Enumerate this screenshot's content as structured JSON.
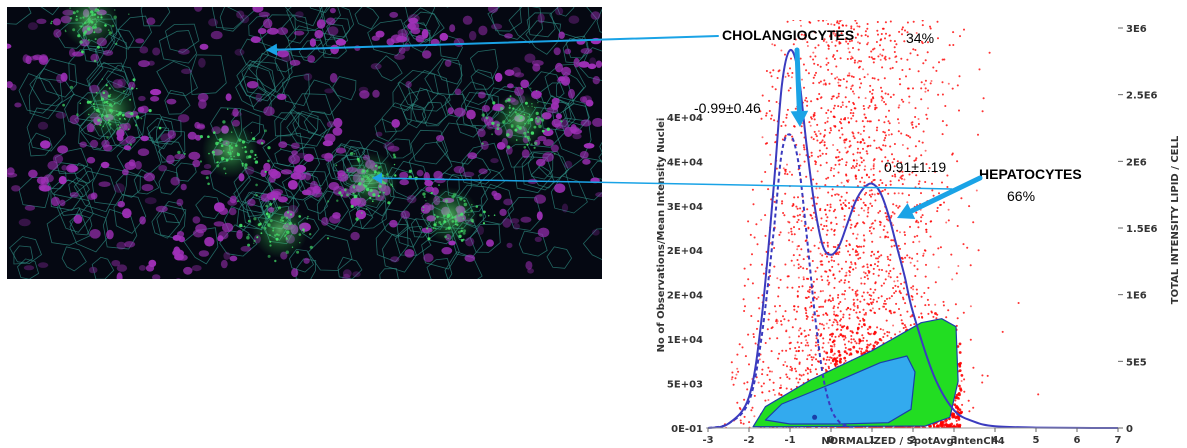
{
  "colors": {
    "scatter": "#ff0000",
    "contour_outer": "#22dd22",
    "contour_inner": "#33aaee",
    "contour_edge": "#1a3fa8",
    "curve": "#3b3bbf",
    "arrow": "#1aa3e6",
    "micro_bg": "#050812",
    "micro_nuclei": "#a030b8",
    "micro_cell_edge": "#2f8f84",
    "micro_lipid": "#44e26a"
  },
  "chart_data": {
    "type": "scatter",
    "xlabel": "NORMALIZED / SpotAvgIntenCh4",
    "ylabel_left": "No of Observations/Mean Intensity Nuclei",
    "ylabel_right": "TOTAL INTENSITY LIPID / CELL",
    "xlim": [
      -3,
      7
    ],
    "x_ticks": [
      "-3",
      "-2",
      "-1",
      "0",
      "1",
      "2",
      "3",
      "4",
      "5",
      "6",
      "7"
    ],
    "y_left_ticks": [
      "0E-01",
      "5E+03",
      "1E+04",
      "2E+04",
      "2E+04",
      "3E+04",
      "4E+04",
      "4E+04"
    ],
    "y_right_ticks": [
      "0",
      "5E5",
      "1E6",
      "1.5E6",
      "2E6",
      "2.5E6",
      "3E6"
    ],
    "ylim_right": [
      0,
      3000000
    ],
    "grid": false,
    "density_curve": {
      "x": [
        -3,
        -2.5,
        -2,
        -1.7,
        -1.4,
        -1.2,
        -1.0,
        -0.8,
        -0.6,
        -0.4,
        -0.2,
        0.0,
        0.2,
        0.4,
        0.6,
        0.8,
        1.0,
        1.2,
        1.4,
        1.6,
        1.8,
        2.0,
        2.5,
        3.0,
        3.5,
        4.0,
        5.0,
        6.0,
        7.0
      ],
      "y": [
        0,
        500,
        3500,
        12000,
        27000,
        38500,
        42500,
        40000,
        32000,
        25000,
        20500,
        19500,
        20500,
        23000,
        25500,
        27000,
        27500,
        26500,
        24000,
        20500,
        17000,
        13000,
        6000,
        2000,
        700,
        200,
        50,
        10,
        0
      ]
    },
    "component_curve": {
      "x": [
        -3,
        -2.5,
        -2,
        -1.7,
        -1.4,
        -1.2,
        -1.0,
        -0.8,
        -0.6,
        -0.4,
        -0.2,
        0.0,
        0.2,
        0.4,
        0.6
      ],
      "y": [
        0,
        500,
        3000,
        10000,
        22000,
        31000,
        33000,
        30000,
        22000,
        13000,
        6000,
        2200,
        700,
        200,
        0
      ]
    },
    "annotations": [
      {
        "text": "CHOLANGIOCYTES",
        "percent": "34%",
        "stat": "-0.99±0.46"
      },
      {
        "text": "HEPATOCYTES",
        "percent": "66%",
        "stat": "0.91±1.19"
      }
    ]
  }
}
